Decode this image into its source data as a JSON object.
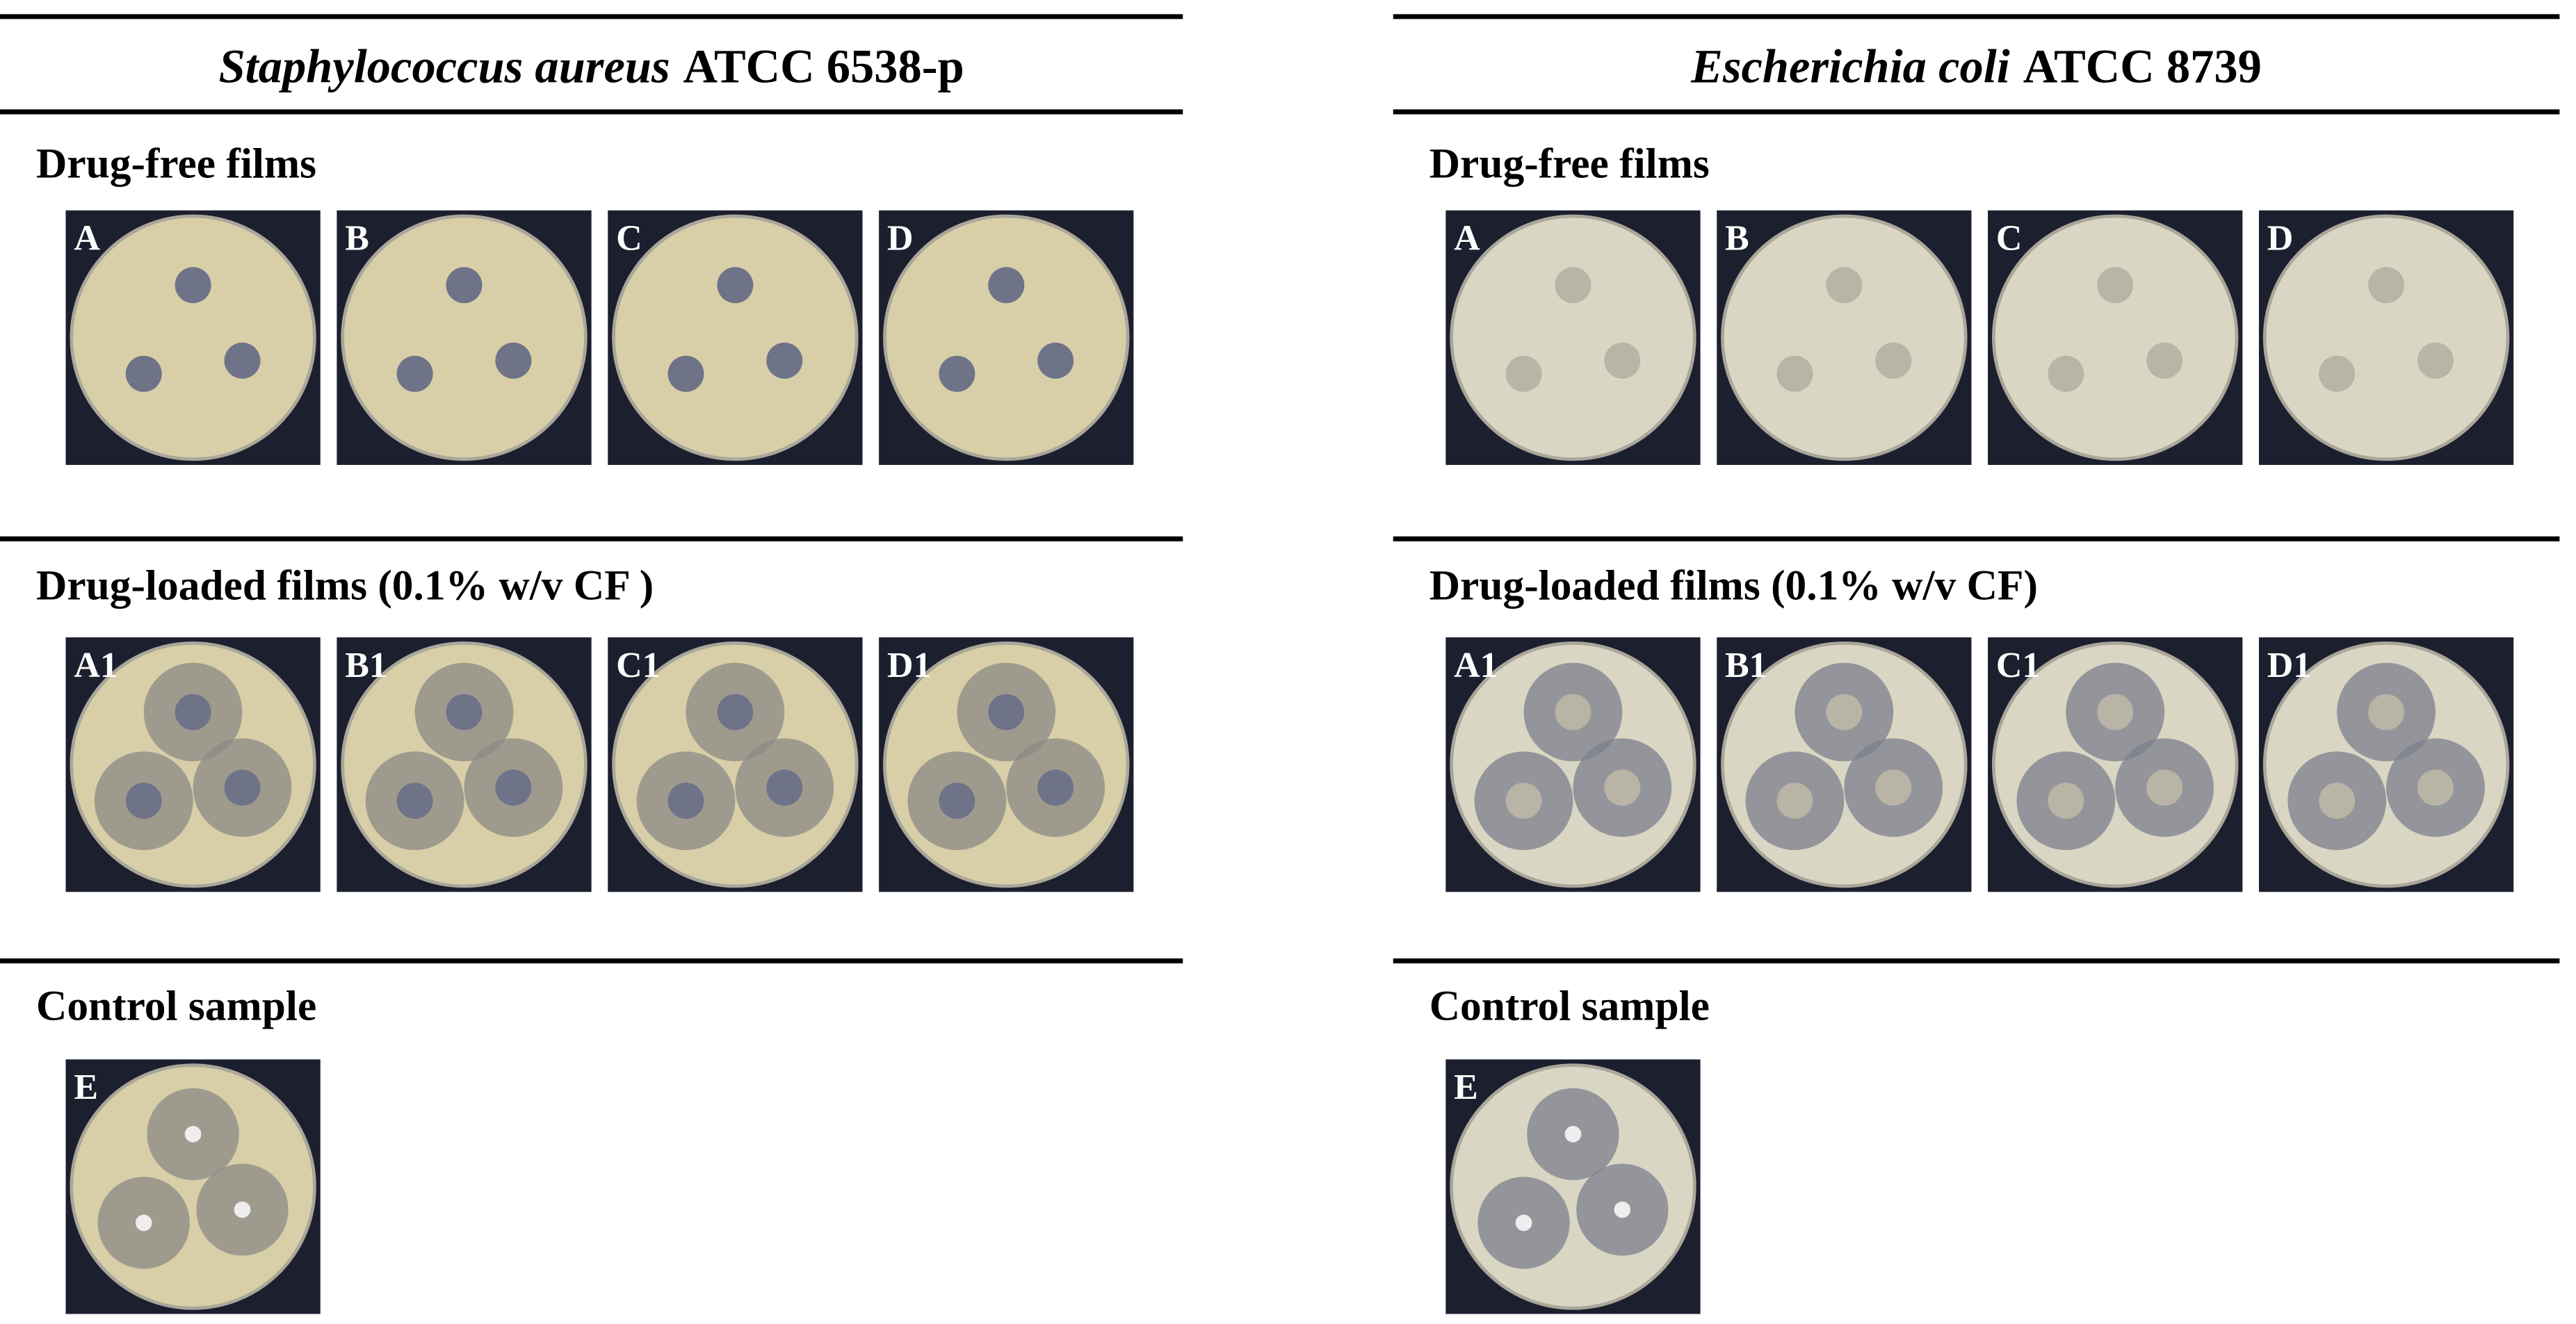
{
  "columns": [
    {
      "title": {
        "italic": "Staphylococcus aureus",
        "rest": "ATCC 6538-p"
      },
      "sections": [
        {
          "title": "Drug-free films",
          "panels": [
            "A",
            "B",
            "C",
            "D"
          ]
        },
        {
          "title": "Drug-loaded films (0.1% w/v CF )",
          "panels": [
            "A1",
            "B1",
            "C1",
            "D1"
          ]
        },
        {
          "title": "Control sample",
          "panels": [
            "E"
          ]
        }
      ]
    },
    {
      "title": {
        "italic": "Escherichia coli",
        "rest": "ATCC 8739"
      },
      "sections": [
        {
          "title": "Drug-free films",
          "panels": [
            "A",
            "B",
            "C",
            "D"
          ]
        },
        {
          "title": "Drug-loaded films (0.1% w/v CF)",
          "panels": [
            "A1",
            "B1",
            "C1",
            "D1"
          ]
        },
        {
          "title": "Control sample",
          "panels": [
            "E"
          ]
        }
      ]
    }
  ]
}
